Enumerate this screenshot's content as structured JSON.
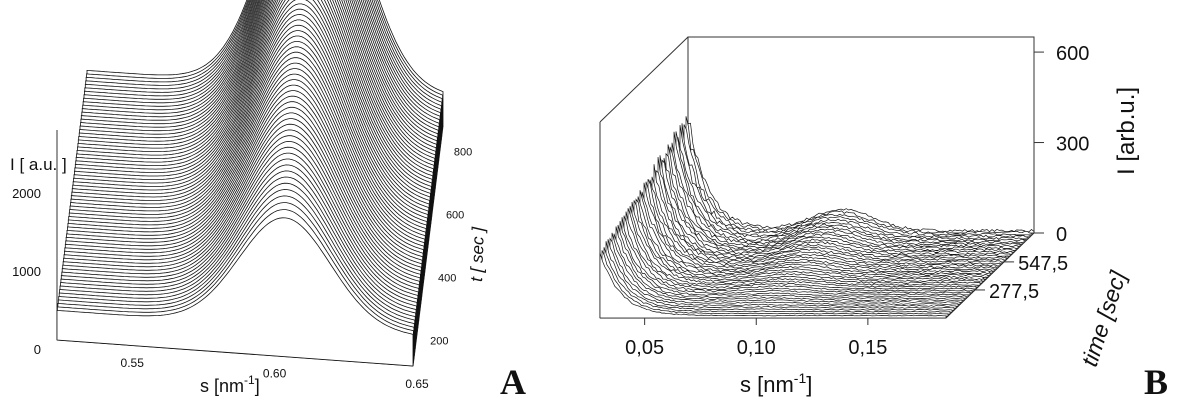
{
  "chart_data": [
    {
      "panel": "A",
      "type": "area",
      "style": "3d-waterfall",
      "xlabel": "s [nm",
      "xlabel_sup": "-1",
      "xlabel_close": "]",
      "zlabel": "I  [ a.u. ]",
      "tlabel": "t [ sec ]",
      "xlim": [
        0.525,
        0.65
      ],
      "x_ticks": [
        "0.55",
        "0.60",
        "0.65"
      ],
      "z_ticks": [
        "0",
        "1000",
        "2000"
      ],
      "t_ticks": [
        "200",
        "400",
        "600",
        "800"
      ],
      "tlim": [
        120,
        880
      ],
      "series_count": 70,
      "peak": {
        "center": 0.605,
        "width": 0.016,
        "amp_first": 1400,
        "amp_last": 3200,
        "baseline": 380
      },
      "grid": false
    },
    {
      "panel": "B",
      "type": "area",
      "style": "3d-waterfall",
      "xlabel": "s [nm",
      "xlabel_sup": "-1",
      "xlabel_close": "]",
      "zlabel": "I [arb.u.]",
      "tlabel": "time [sec]",
      "xlim": [
        0.03,
        0.185
      ],
      "x_ticks": [
        "0,05",
        "0,10",
        "0,15"
      ],
      "z_ticks": [
        "0",
        "300",
        "600"
      ],
      "t_ticks": [
        "277,5",
        "547,5"
      ],
      "zlim": [
        0,
        650
      ],
      "series_count": 45,
      "profile": {
        "decay_amp": 380,
        "decay_scale": 0.009,
        "bump_center": 0.099,
        "bump_width": 0.014,
        "bump_amp_max": 70
      },
      "grid": false
    }
  ],
  "panel_labels": [
    "A",
    "B"
  ]
}
